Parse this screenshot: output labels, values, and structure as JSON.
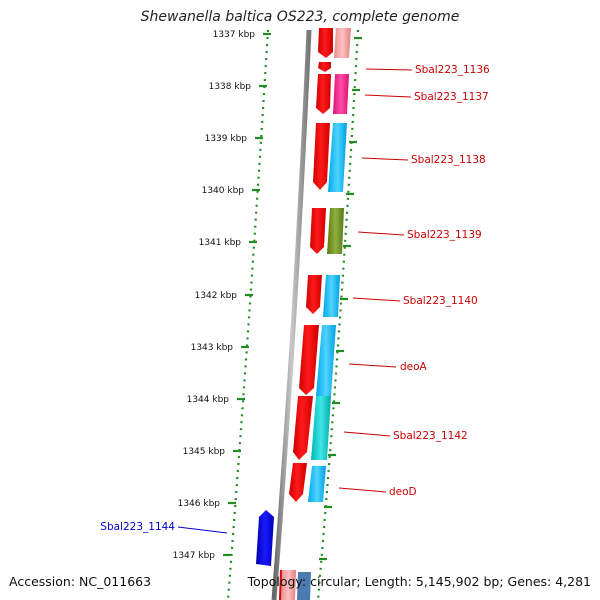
{
  "title": "Shewanella baltica OS223, complete genome",
  "accession_text": "Accession: NC_011663",
  "summary_text": "Topology: circular; Length: 5,145,902 bp; Genes: 4,281",
  "scale_ticks": [
    {
      "label": "1337 kbp"
    },
    {
      "label": "1338 kbp"
    },
    {
      "label": "1339 kbp"
    },
    {
      "label": "1340 kbp"
    },
    {
      "label": "1341 kbp"
    },
    {
      "label": "1342 kbp"
    },
    {
      "label": "1343 kbp"
    },
    {
      "label": "1344 kbp"
    },
    {
      "label": "1345 kbp"
    },
    {
      "label": "1346 kbp"
    },
    {
      "label": "1347 kbp"
    }
  ],
  "genes": [
    {
      "name": "Sbal223_1136",
      "color": "#cc0000",
      "category_color": "#ee1c7a"
    },
    {
      "name": "Sbal223_1137",
      "color": "#cc0000",
      "category_color": "#ee1c7a"
    },
    {
      "name": "Sbal223_1138",
      "color": "#cc0000",
      "category_color": "#00b0f0"
    },
    {
      "name": "Sbal223_1139",
      "color": "#cc0000",
      "category_color": "#6b8e23"
    },
    {
      "name": "Sbal223_1140",
      "color": "#cc0000",
      "category_color": "#00b0f0"
    },
    {
      "name": "deoA",
      "color": "#cc0000",
      "category_color": "#00b0f0"
    },
    {
      "name": "Sbal223_1142",
      "color": "#cc0000",
      "category_color": "#00c8c8"
    },
    {
      "name": "deoD",
      "color": "#cc0000",
      "category_color": "#00b0f0"
    },
    {
      "name": "Sbal223_1144",
      "color": "#0000cc",
      "category_color": null
    }
  ],
  "colors": {
    "forward_gene": "#ee0000",
    "reverse_gene": "#0000dd",
    "label_forward": "#cc0000",
    "label_reverse": "#0000cc",
    "backbone": "#888888",
    "scale": "#228b22"
  }
}
